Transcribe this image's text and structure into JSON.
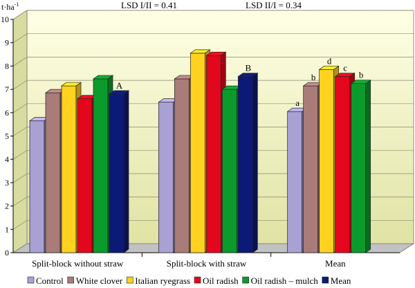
{
  "chart_data": {
    "type": "bar",
    "ylabel": "t·ha",
    "ylabel_sup": "-1",
    "ylim": [
      0,
      10
    ],
    "yticks": [
      0,
      1,
      2,
      3,
      4,
      5,
      6,
      7,
      8,
      9,
      10
    ],
    "grid": true,
    "legend_position": "bottom",
    "annotations": [
      "LSD I/II = 0.41",
      "LSD II/I = 0.34"
    ],
    "categories": [
      "Split-block without straw",
      "Split-block with straw",
      "Mean"
    ],
    "series": [
      {
        "name": "Control",
        "color": "#a9a0d4",
        "values": [
          5.65,
          6.45,
          6.05
        ]
      },
      {
        "name": "White clover",
        "color": "#a97c7a",
        "values": [
          6.85,
          7.45,
          7.15
        ]
      },
      {
        "name": "Italian ryegrass",
        "color": "#ffd21f",
        "values": [
          7.15,
          8.55,
          7.85
        ]
      },
      {
        "name": "Oil radish",
        "color": "#e3071d",
        "values": [
          6.6,
          8.45,
          7.55
        ]
      },
      {
        "name": "Oil radish – mulch",
        "color": "#0b9a2c",
        "values": [
          7.45,
          7.0,
          7.25
        ]
      },
      {
        "name": "Mean",
        "color": "#0b1a77",
        "values": [
          6.8,
          7.55,
          null
        ]
      }
    ],
    "significance": [
      {
        "category": 0,
        "series": 5,
        "label": "A"
      },
      {
        "category": 1,
        "series": 5,
        "label": "B"
      },
      {
        "category": 2,
        "series": 0,
        "label": "a"
      },
      {
        "category": 2,
        "series": 1,
        "label": "b"
      },
      {
        "category": 2,
        "series": 2,
        "label": "d"
      },
      {
        "category": 2,
        "series": 3,
        "label": "c"
      },
      {
        "category": 2,
        "series": 4,
        "label": "b"
      }
    ]
  }
}
